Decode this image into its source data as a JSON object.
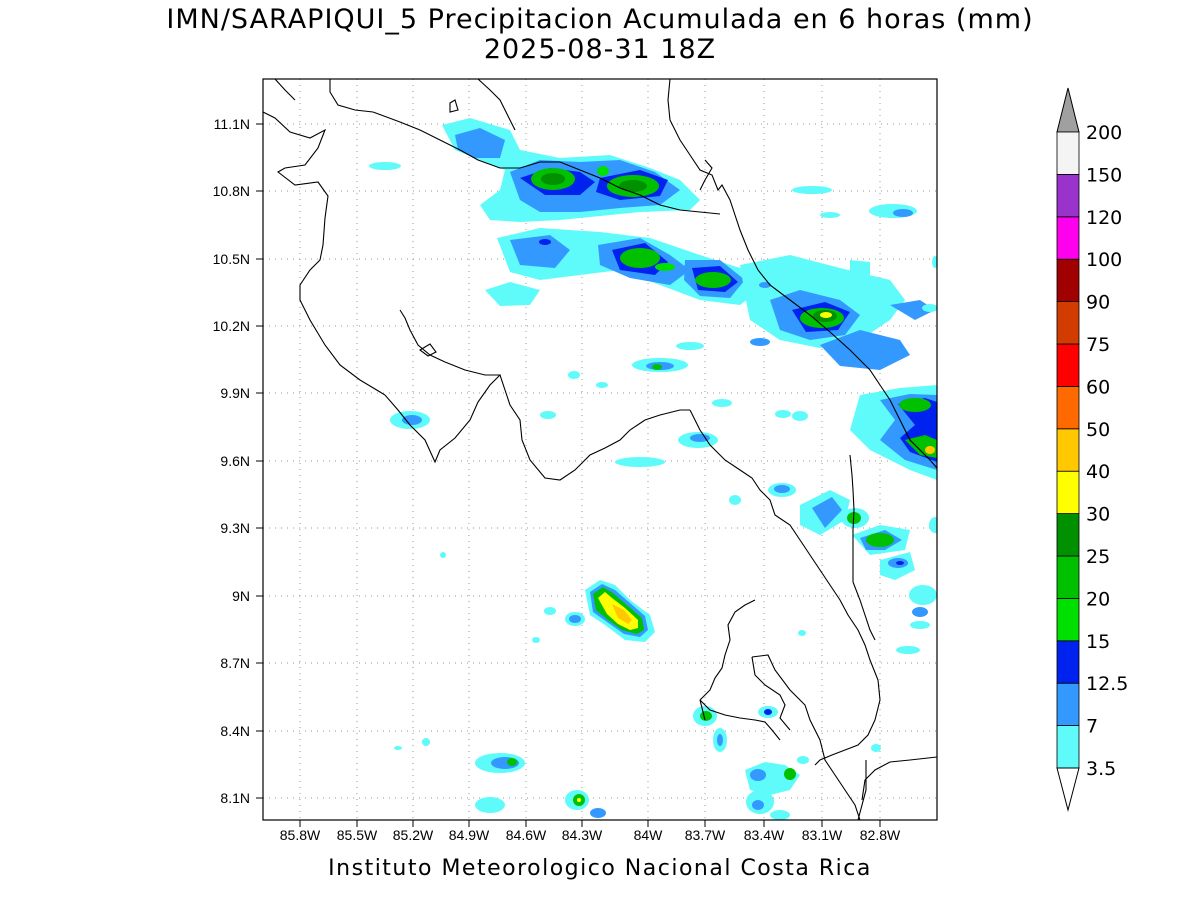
{
  "title": "IMN/SARAPIQUI_5 Precipitacion Acumulada en 6 horas (mm)",
  "subtitle": "2025-08-31 18Z",
  "footer": "Instituto Meteorologico Nacional Costa Rica",
  "map": {
    "lon_ticks": [
      "85.8W",
      "85.5W",
      "85.2W",
      "84.9W",
      "84.6W",
      "84.3W",
      "84W",
      "83.7W",
      "83.4W",
      "83.1W",
      "82.8W"
    ],
    "lat_ticks": [
      "11.1N",
      "10.8N",
      "10.5N",
      "10.2N",
      "9.9N",
      "9.6N",
      "9.3N",
      "9N",
      "8.7N",
      "8.4N",
      "8.1N"
    ]
  },
  "colorbar": {
    "labels": [
      "3.5",
      "7",
      "12.5",
      "15",
      "20",
      "25",
      "30",
      "40",
      "50",
      "60",
      "75",
      "90",
      "100",
      "120",
      "150",
      "200"
    ],
    "colors": [
      "#5ffbfb",
      "#3399ff",
      "#0022ee",
      "#00e000",
      "#00c000",
      "#009000",
      "#ffff00",
      "#ffc800",
      "#ff6a00",
      "#ff0000",
      "#d23c00",
      "#a00000",
      "#ff00ee",
      "#9933cc",
      "#f4f4f4"
    ],
    "under_color": "#ffffff",
    "over_color": "#a0a0a0"
  }
}
